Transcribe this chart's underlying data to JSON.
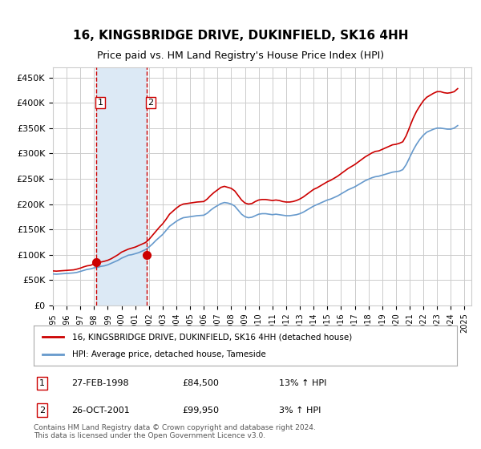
{
  "title": "16, KINGSBRIDGE DRIVE, DUKINFIELD, SK16 4HH",
  "subtitle": "Price paid vs. HM Land Registry's House Price Index (HPI)",
  "title_fontsize": 11,
  "subtitle_fontsize": 9,
  "ylabel_ticks": [
    "£0",
    "£50K",
    "£100K",
    "£150K",
    "£200K",
    "£250K",
    "£300K",
    "£350K",
    "£400K",
    "£450K"
  ],
  "ytick_values": [
    0,
    50000,
    100000,
    150000,
    200000,
    250000,
    300000,
    350000,
    400000,
    450000
  ],
  "ylim": [
    0,
    470000
  ],
  "xlim_start": 1995.0,
  "xlim_end": 2025.5,
  "background_color": "#ffffff",
  "grid_color": "#cccccc",
  "purchase1_date": 1998.15,
  "purchase1_price": 84500,
  "purchase1_label": "1",
  "purchase1_text": "27-FEB-1998    £84,500    13% ↑ HPI",
  "purchase2_date": 2001.82,
  "purchase2_price": 99950,
  "purchase2_label": "2",
  "purchase2_text": "26-OCT-2001    £99,950    3% ↑ HPI",
  "shade_color": "#dce9f5",
  "shade_alpha": 0.5,
  "marker_color": "#cc0000",
  "hpi_line_color": "#6699cc",
  "price_line_color": "#cc0000",
  "legend_label_price": "16, KINGSBRIDGE DRIVE, DUKINFIELD, SK16 4HH (detached house)",
  "legend_label_hpi": "HPI: Average price, detached house, Tameside",
  "footer": "Contains HM Land Registry data © Crown copyright and database right 2024.\nThis data is licensed under the Open Government Licence v3.0.",
  "xtick_years": [
    "1995",
    "1996",
    "1997",
    "1998",
    "1999",
    "2000",
    "2001",
    "2002",
    "2003",
    "2004",
    "2005",
    "2006",
    "2007",
    "2008",
    "2009",
    "2010",
    "2011",
    "2012",
    "2013",
    "2014",
    "2015",
    "2016",
    "2017",
    "2018",
    "2019",
    "2020",
    "2021",
    "2022",
    "2023",
    "2024",
    "2025"
  ],
  "hpi_years": [
    1995.0,
    1995.25,
    1995.5,
    1995.75,
    1996.0,
    1996.25,
    1996.5,
    1996.75,
    1997.0,
    1997.25,
    1997.5,
    1997.75,
    1998.0,
    1998.25,
    1998.5,
    1998.75,
    1999.0,
    1999.25,
    1999.5,
    1999.75,
    2000.0,
    2000.25,
    2000.5,
    2000.75,
    2001.0,
    2001.25,
    2001.5,
    2001.75,
    2002.0,
    2002.25,
    2002.5,
    2002.75,
    2003.0,
    2003.25,
    2003.5,
    2003.75,
    2004.0,
    2004.25,
    2004.5,
    2004.75,
    2005.0,
    2005.25,
    2005.5,
    2005.75,
    2006.0,
    2006.25,
    2006.5,
    2006.75,
    2007.0,
    2007.25,
    2007.5,
    2007.75,
    2008.0,
    2008.25,
    2008.5,
    2008.75,
    2009.0,
    2009.25,
    2009.5,
    2009.75,
    2010.0,
    2010.25,
    2010.5,
    2010.75,
    2011.0,
    2011.25,
    2011.5,
    2011.75,
    2012.0,
    2012.25,
    2012.5,
    2012.75,
    2013.0,
    2013.25,
    2013.5,
    2013.75,
    2014.0,
    2014.25,
    2014.5,
    2014.75,
    2015.0,
    2015.25,
    2015.5,
    2015.75,
    2016.0,
    2016.25,
    2016.5,
    2016.75,
    2017.0,
    2017.25,
    2017.5,
    2017.75,
    2018.0,
    2018.25,
    2018.5,
    2018.75,
    2019.0,
    2019.25,
    2019.5,
    2019.75,
    2020.0,
    2020.25,
    2020.5,
    2020.75,
    2021.0,
    2021.25,
    2021.5,
    2021.75,
    2022.0,
    2022.25,
    2022.5,
    2022.75,
    2023.0,
    2023.25,
    2023.5,
    2023.75,
    2024.0,
    2024.25,
    2024.5
  ],
  "hpi_values": [
    62000,
    61500,
    62000,
    62500,
    63000,
    63500,
    64000,
    65000,
    67000,
    69000,
    71000,
    72000,
    74000,
    75000,
    77000,
    78000,
    80000,
    83000,
    86000,
    89000,
    93000,
    96000,
    99000,
    100000,
    102000,
    104000,
    107000,
    110000,
    115000,
    121000,
    128000,
    134000,
    140000,
    148000,
    156000,
    161000,
    166000,
    170000,
    173000,
    174000,
    175000,
    176000,
    177000,
    177500,
    178000,
    182000,
    188000,
    193000,
    197000,
    201000,
    203000,
    202000,
    200000,
    196000,
    188000,
    180000,
    175000,
    173000,
    174000,
    177000,
    180000,
    181000,
    181000,
    180000,
    179000,
    180000,
    179000,
    178000,
    177000,
    177000,
    178000,
    179000,
    181000,
    184000,
    188000,
    192000,
    196000,
    199000,
    202000,
    205000,
    208000,
    210000,
    213000,
    216000,
    220000,
    224000,
    228000,
    231000,
    234000,
    238000,
    242000,
    246000,
    249000,
    252000,
    254000,
    255000,
    257000,
    259000,
    261000,
    263000,
    264000,
    265000,
    268000,
    278000,
    292000,
    306000,
    318000,
    328000,
    336000,
    342000,
    345000,
    348000,
    350000,
    350000,
    349000,
    348000,
    348000,
    350000,
    355000
  ],
  "price_years": [
    1995.0,
    1995.25,
    1995.5,
    1995.75,
    1996.0,
    1996.25,
    1996.5,
    1996.75,
    1997.0,
    1997.25,
    1997.5,
    1997.75,
    1998.0,
    1998.25,
    1998.5,
    1998.75,
    1999.0,
    1999.25,
    1999.5,
    1999.75,
    2000.0,
    2000.25,
    2000.5,
    2000.75,
    2001.0,
    2001.25,
    2001.5,
    2001.75,
    2002.0,
    2002.25,
    2002.5,
    2002.75,
    2003.0,
    2003.25,
    2003.5,
    2003.75,
    2004.0,
    2004.25,
    2004.5,
    2004.75,
    2005.0,
    2005.25,
    2005.5,
    2005.75,
    2006.0,
    2006.25,
    2006.5,
    2006.75,
    2007.0,
    2007.25,
    2007.5,
    2007.75,
    2008.0,
    2008.25,
    2008.5,
    2008.75,
    2009.0,
    2009.25,
    2009.5,
    2009.75,
    2010.0,
    2010.25,
    2010.5,
    2010.75,
    2011.0,
    2011.25,
    2011.5,
    2011.75,
    2012.0,
    2012.25,
    2012.5,
    2012.75,
    2013.0,
    2013.25,
    2013.5,
    2013.75,
    2014.0,
    2014.25,
    2014.5,
    2014.75,
    2015.0,
    2015.25,
    2015.5,
    2015.75,
    2016.0,
    2016.25,
    2016.5,
    2016.75,
    2017.0,
    2017.25,
    2017.5,
    2017.75,
    2018.0,
    2018.25,
    2018.5,
    2018.75,
    2019.0,
    2019.25,
    2019.5,
    2019.75,
    2020.0,
    2020.25,
    2020.5,
    2020.75,
    2021.0,
    2021.25,
    2021.5,
    2021.75,
    2022.0,
    2022.25,
    2022.5,
    2022.75,
    2023.0,
    2023.25,
    2023.5,
    2023.75,
    2024.0,
    2024.25,
    2024.5
  ],
  "price_values": [
    68000,
    67500,
    68000,
    68500,
    69000,
    69500,
    70000,
    71500,
    73500,
    76000,
    78000,
    79000,
    82000,
    84500,
    85500,
    87000,
    89000,
    92000,
    96000,
    100000,
    105000,
    108000,
    111000,
    113000,
    115000,
    118000,
    121000,
    124000,
    130000,
    138000,
    146000,
    154000,
    161000,
    170000,
    180000,
    186000,
    192000,
    197000,
    200000,
    201000,
    202000,
    203000,
    204000,
    204500,
    205000,
    210000,
    217000,
    223000,
    228000,
    233000,
    235000,
    233000,
    231000,
    226000,
    217000,
    208000,
    202000,
    200000,
    201000,
    205000,
    208000,
    209000,
    209000,
    208000,
    207000,
    208000,
    207000,
    205000,
    204000,
    204000,
    205000,
    207000,
    210000,
    214000,
    219000,
    224000,
    229000,
    232000,
    236000,
    240000,
    244000,
    247000,
    251000,
    255000,
    260000,
    265000,
    270000,
    274000,
    278000,
    283000,
    288000,
    293000,
    297000,
    301000,
    304000,
    305000,
    308000,
    311000,
    314000,
    317000,
    318000,
    320000,
    323000,
    335000,
    352000,
    369000,
    383000,
    394000,
    404000,
    411000,
    415000,
    419000,
    422000,
    422000,
    420000,
    419000,
    420000,
    422000,
    428000
  ],
  "table_row1": [
    "1",
    "27-FEB-1998",
    "£84,500",
    "13% ↑ HPI"
  ],
  "table_row2": [
    "2",
    "26-OCT-2001",
    "£99,950",
    "3% ↑ HPI"
  ]
}
